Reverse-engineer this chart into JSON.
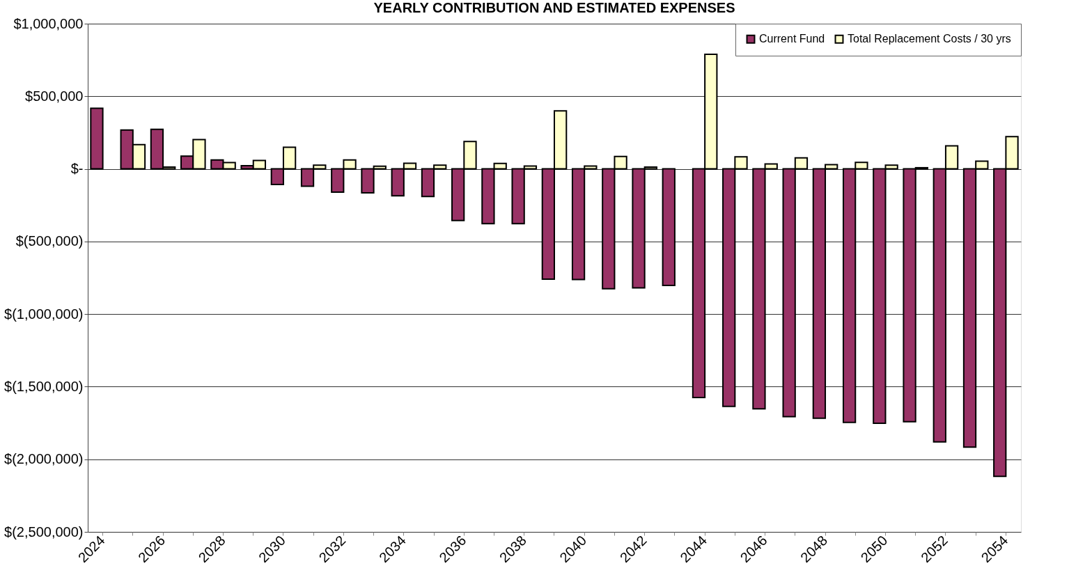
{
  "chart_data": {
    "type": "bar",
    "title": "YEARLY CONTRIBUTION AND ESTIMATED EXPENSES",
    "categories": [
      "2024",
      null,
      "2026",
      null,
      "2028",
      null,
      "2030",
      null,
      "2032",
      null,
      "2034",
      null,
      "2036",
      null,
      "2038",
      null,
      "2040",
      null,
      "2042",
      null,
      "2044",
      null,
      "2046",
      null,
      "2048",
      null,
      "2050",
      null,
      "2052",
      null,
      "2054"
    ],
    "series": [
      {
        "name": "Current Fund",
        "color": "#993366",
        "values": [
          417000,
          268000,
          272000,
          88000,
          61000,
          22000,
          -108000,
          -120000,
          -160000,
          -165000,
          -185000,
          -190000,
          -356000,
          -377000,
          -377000,
          -759000,
          -762000,
          -825000,
          -820000,
          -803000,
          -1575000,
          -1636000,
          -1652000,
          -1706000,
          -1717000,
          -1746000,
          -1752000,
          -1741000,
          -1880000,
          -1916000,
          -2118000
        ]
      },
      {
        "name": "Total Replacement Costs / 30 yrs",
        "color": "#ffffcc",
        "values": [
          null,
          167000,
          12000,
          202000,
          44000,
          58000,
          149000,
          26000,
          61000,
          18000,
          39000,
          26000,
          189000,
          38000,
          20000,
          400000,
          20000,
          85000,
          12000,
          null,
          789000,
          83000,
          34000,
          76000,
          29000,
          45000,
          25000,
          8000,
          158000,
          53000,
          222000
        ]
      }
    ],
    "ylim": [
      -2500000,
      1000000
    ],
    "yticks": [
      {
        "value": -2500000,
        "label": "$(2,500,000)"
      },
      {
        "value": -2000000,
        "label": "$(2,000,000)"
      },
      {
        "value": -1500000,
        "label": "$(1,500,000)"
      },
      {
        "value": -1000000,
        "label": "$(1,000,000)"
      },
      {
        "value": -500000,
        "label": "$(500,000)"
      },
      {
        "value": 0,
        "label": "$-"
      },
      {
        "value": 500000,
        "label": "$500,000"
      },
      {
        "value": 1000000,
        "label": "$1,000,000"
      }
    ],
    "grid": "y",
    "legend": "top right"
  }
}
